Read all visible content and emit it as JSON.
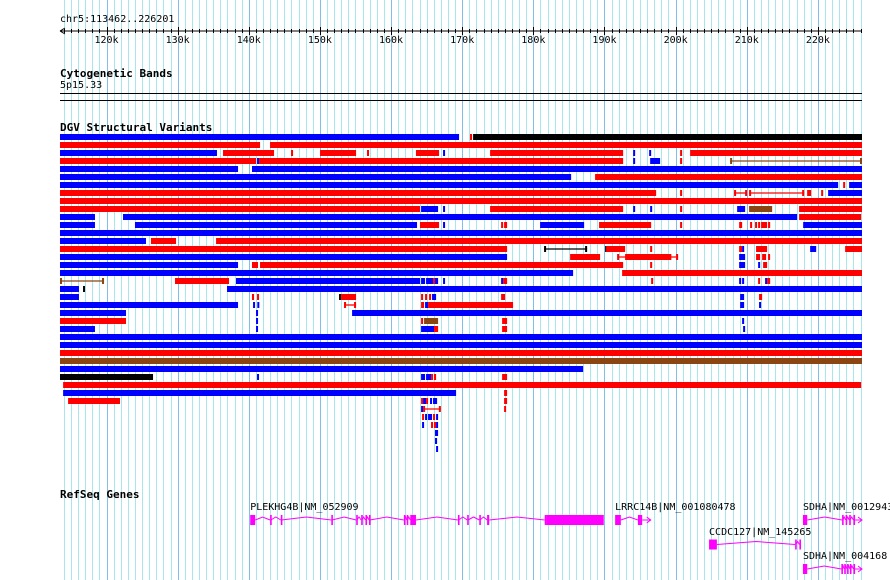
{
  "region": {
    "label": "chr5:113462..226201",
    "start": 113462,
    "end": 226201
  },
  "ruler": {
    "ticks": [
      "120k",
      "130k",
      "140k",
      "150k",
      "160k",
      "170k",
      "180k",
      "190k",
      "200k",
      "210k",
      "220k"
    ],
    "tick_values_kb": [
      120,
      130,
      140,
      150,
      160,
      170,
      180,
      190,
      200,
      210,
      220
    ]
  },
  "tracks": {
    "cyto": {
      "title": "Cytogenetic Bands",
      "band": "5p15.33"
    },
    "dgv": {
      "title": "DGV Structural Variants"
    },
    "refseq": {
      "title": "RefSeq Genes"
    }
  },
  "colors": {
    "b": "#0000ff",
    "r": "#ff0000",
    "k": "#000000",
    "n": "#8b4513",
    "gene": "#ff00ff",
    "grid_minor": "#a8e6ee",
    "grid_major": "#7fbfe8"
  },
  "sv_rows": [
    [
      [
        113.46,
        169.56,
        "b"
      ],
      [
        171.1,
        171.39,
        "r"
      ],
      [
        171.53,
        226.2,
        "k"
      ]
    ],
    [
      [
        113.46,
        141.58,
        "r"
      ],
      [
        142.99,
        226.2,
        "r"
      ]
    ],
    [
      [
        113.46,
        135.53,
        "b"
      ],
      [
        136.38,
        143.55,
        "r"
      ],
      [
        145.94,
        146.22,
        "r"
      ],
      [
        150.02,
        155.08,
        "r"
      ],
      [
        156.62,
        156.9,
        "r"
      ],
      [
        163.5,
        166.75,
        "r"
      ],
      [
        167.31,
        167.59,
        "b"
      ],
      [
        173.92,
        192.62,
        "r"
      ],
      [
        194.03,
        194.31,
        "b"
      ],
      [
        196.28,
        196.56,
        "b"
      ],
      [
        200.63,
        200.92,
        "r"
      ],
      [
        202.04,
        226.2,
        "r"
      ]
    ],
    [
      [
        113.46,
        141.02,
        "r"
      ],
      [
        141.16,
        141.44,
        "b"
      ],
      [
        141.44,
        192.62,
        "r"
      ],
      [
        194.03,
        194.31,
        "b"
      ],
      [
        196.42,
        197.82,
        "b"
      ],
      [
        200.63,
        200.92,
        "r"
      ],
      [
        207.66,
        226.2,
        "nl"
      ]
    ],
    [
      [
        113.46,
        138.49,
        "b"
      ],
      [
        140.45,
        226.2,
        "b"
      ]
    ],
    [
      [
        113.46,
        185.31,
        "b"
      ],
      [
        188.68,
        226.2,
        "r"
      ]
    ],
    [
      [
        113.46,
        222.85,
        "b"
      ],
      [
        223.55,
        223.83,
        "r"
      ],
      [
        224.39,
        226.2,
        "b"
      ]
    ],
    [
      [
        113.46,
        197.26,
        "r"
      ],
      [
        200.63,
        200.92,
        "r"
      ],
      [
        208.22,
        210.05,
        "rl"
      ],
      [
        210.33,
        218.07,
        "rl"
      ],
      [
        218.49,
        219.05,
        "r"
      ],
      [
        220.46,
        220.74,
        "r"
      ],
      [
        221.44,
        226.2,
        "b"
      ]
    ],
    [
      [
        113.46,
        226.2,
        "r"
      ]
    ],
    [
      [
        113.46,
        164.07,
        "r"
      ],
      [
        164.22,
        166.61,
        "b"
      ],
      [
        167.31,
        167.59,
        "b"
      ],
      [
        173.92,
        192.62,
        "r"
      ],
      [
        194.03,
        194.31,
        "b"
      ],
      [
        196.42,
        196.7,
        "b"
      ],
      [
        200.63,
        200.92,
        "r"
      ],
      [
        208.65,
        209.77,
        "b"
      ],
      [
        210.33,
        213.57,
        "n"
      ],
      [
        217.36,
        226.2,
        "r"
      ]
    ],
    [
      [
        113.46,
        118.38,
        "b"
      ],
      [
        122.32,
        217.08,
        "b"
      ],
      [
        217.36,
        226.08,
        "r"
      ]
    ],
    [
      [
        113.46,
        118.38,
        "b"
      ],
      [
        124.0,
        163.65,
        "b"
      ],
      [
        164.07,
        166.75,
        "r"
      ],
      [
        167.31,
        167.59,
        "b"
      ],
      [
        175.47,
        175.75,
        "r"
      ],
      [
        175.89,
        176.31,
        "r"
      ],
      [
        180.95,
        187.14,
        "b"
      ],
      [
        189.24,
        196.56,
        "r"
      ],
      [
        200.63,
        200.92,
        "r"
      ],
      [
        208.93,
        209.35,
        "r"
      ],
      [
        210.47,
        210.75,
        "r"
      ],
      [
        211.17,
        211.45,
        "r"
      ],
      [
        211.6,
        211.88,
        "r"
      ],
      [
        212.02,
        212.86,
        "r"
      ],
      [
        213.0,
        213.29,
        "r"
      ],
      [
        217.93,
        226.2,
        "b"
      ]
    ],
    [
      [
        113.46,
        226.2,
        "b"
      ]
    ],
    [
      [
        113.46,
        125.55,
        "b"
      ],
      [
        126.25,
        129.77,
        "r"
      ],
      [
        135.4,
        226.2,
        "r"
      ]
    ],
    [
      [
        113.46,
        176.31,
        "r"
      ],
      [
        181.51,
        187.56,
        "kl"
      ],
      [
        190.09,
        190.23,
        "k"
      ],
      [
        190.23,
        192.9,
        "r"
      ],
      [
        196.42,
        196.7,
        "r"
      ],
      [
        208.93,
        209.35,
        "r"
      ],
      [
        209.35,
        209.63,
        "b"
      ],
      [
        211.31,
        212.86,
        "r"
      ],
      [
        218.91,
        219.76,
        "b"
      ],
      [
        223.83,
        226.2,
        "r"
      ]
    ],
    [
      [
        113.46,
        176.31,
        "b"
      ],
      [
        185.17,
        189.38,
        "r"
      ],
      [
        191.78,
        200.35,
        "rl"
      ],
      [
        192.9,
        199.4,
        "r"
      ],
      [
        208.93,
        209.77,
        "b"
      ],
      [
        211.31,
        211.88,
        "r"
      ],
      [
        212.16,
        212.72,
        "r"
      ],
      [
        213.0,
        213.14,
        "r"
      ]
    ],
    [
      [
        113.46,
        138.49,
        "b"
      ],
      [
        140.45,
        141.3,
        "r"
      ],
      [
        141.58,
        192.62,
        "r"
      ],
      [
        196.42,
        196.7,
        "r"
      ],
      [
        208.93,
        209.77,
        "b"
      ],
      [
        211.6,
        211.88,
        "b"
      ],
      [
        212.3,
        212.86,
        "r"
      ]
    ],
    [
      [
        113.46,
        185.59,
        "b"
      ],
      [
        192.48,
        226.2,
        "r"
      ]
    ],
    [
      [
        113.46,
        119.65,
        "nl"
      ],
      [
        129.63,
        137.22,
        "r"
      ],
      [
        138.2,
        164.07,
        "b"
      ],
      [
        164.22,
        164.78,
        "b"
      ],
      [
        164.92,
        165.9,
        "b"
      ],
      [
        165.9,
        166.04,
        "r"
      ],
      [
        166.18,
        166.61,
        "b"
      ],
      [
        167.31,
        167.59,
        "b"
      ],
      [
        175.47,
        175.75,
        "b"
      ],
      [
        175.75,
        176.31,
        "r"
      ],
      [
        196.56,
        196.7,
        "r"
      ],
      [
        208.93,
        209.21,
        "b"
      ],
      [
        209.35,
        209.63,
        "b"
      ],
      [
        211.6,
        211.88,
        "r"
      ],
      [
        212.58,
        212.72,
        "b"
      ],
      [
        212.86,
        213.29,
        "r"
      ]
    ],
    [
      [
        113.46,
        116.13,
        "b"
      ],
      [
        116.7,
        116.98,
        "k"
      ],
      [
        136.94,
        226.2,
        "b"
      ]
    ],
    [
      [
        113.46,
        116.13,
        "b"
      ],
      [
        140.45,
        140.74,
        "r"
      ],
      [
        141.16,
        141.44,
        "r"
      ],
      [
        152.69,
        152.97,
        "k"
      ],
      [
        152.97,
        155.08,
        "r"
      ],
      [
        164.22,
        164.5,
        "r"
      ],
      [
        164.78,
        165.06,
        "r"
      ],
      [
        165.34,
        165.62,
        "r"
      ],
      [
        165.76,
        166.33,
        "b"
      ],
      [
        175.47,
        176.03,
        "r"
      ],
      [
        209.07,
        209.63,
        "b"
      ],
      [
        211.73,
        212.16,
        "r"
      ]
    ],
    [
      [
        113.46,
        138.49,
        "b"
      ],
      [
        140.6,
        140.8,
        "b"
      ],
      [
        141.2,
        141.44,
        "b"
      ],
      [
        153.39,
        155.08,
        "rl"
      ],
      [
        164.22,
        164.64,
        "r"
      ],
      [
        164.78,
        165.2,
        "b"
      ],
      [
        165.2,
        177.15,
        "r"
      ],
      [
        209.07,
        209.63,
        "b"
      ],
      [
        211.73,
        212.02,
        "b"
      ]
    ],
    [
      [
        113.46,
        122.74,
        "b"
      ],
      [
        141.02,
        141.3,
        "b"
      ],
      [
        154.52,
        226.2,
        "b"
      ]
    ],
    [
      [
        113.46,
        122.74,
        "r"
      ],
      [
        141.02,
        141.3,
        "b"
      ],
      [
        164.22,
        164.5,
        "r"
      ],
      [
        164.64,
        166.61,
        "n"
      ],
      [
        175.61,
        176.31,
        "r"
      ],
      [
        209.35,
        209.63,
        "b"
      ]
    ],
    [
      [
        113.46,
        118.38,
        "b"
      ],
      [
        141.02,
        141.3,
        "b"
      ],
      [
        164.22,
        166.04,
        "b"
      ],
      [
        166.04,
        166.61,
        "r"
      ],
      [
        175.61,
        176.31,
        "r"
      ],
      [
        209.49,
        209.77,
        "b"
      ]
    ],
    [
      [
        113.46,
        226.2,
        "b"
      ]
    ],
    [
      [
        113.46,
        226.2,
        "b"
      ]
    ],
    [
      [
        113.46,
        226.2,
        "r"
      ]
    ],
    [
      [
        113.46,
        226.2,
        "n"
      ]
    ],
    [
      [
        113.46,
        187.0,
        "b"
      ]
    ],
    [
      [
        113.46,
        126.54,
        "k"
      ],
      [
        141.16,
        141.44,
        "b"
      ],
      [
        164.22,
        164.78,
        "b"
      ],
      [
        164.92,
        165.62,
        "b"
      ],
      [
        165.62,
        165.9,
        "r"
      ],
      [
        166.04,
        166.33,
        "r"
      ],
      [
        175.61,
        176.31,
        "r"
      ]
    ],
    [
      [
        113.9,
        226.08,
        "r"
      ]
    ],
    [
      [
        113.9,
        169.14,
        "b"
      ],
      [
        175.89,
        176.31,
        "r"
      ]
    ],
    [
      [
        114.6,
        121.9,
        "r"
      ],
      [
        164.22,
        164.5,
        "r"
      ],
      [
        164.5,
        164.92,
        "b"
      ],
      [
        164.92,
        165.2,
        "r"
      ],
      [
        165.48,
        165.76,
        "b"
      ],
      [
        165.9,
        166.47,
        "b"
      ],
      [
        175.89,
        176.31,
        "r"
      ]
    ],
    [
      [
        164.22,
        164.5,
        "b"
      ],
      [
        164.5,
        167.0,
        "rl"
      ],
      [
        175.89,
        176.17,
        "r"
      ]
    ],
    [
      [
        164.36,
        164.64,
        "r"
      ],
      [
        164.78,
        164.92,
        "b"
      ],
      [
        165.2,
        165.76,
        "b"
      ],
      [
        165.9,
        166.18,
        "r"
      ],
      [
        166.33,
        166.61,
        "b"
      ]
    ],
    [
      [
        164.36,
        164.64,
        "b"
      ],
      [
        165.62,
        165.9,
        "r"
      ],
      [
        166.04,
        166.33,
        "r"
      ],
      [
        166.33,
        166.61,
        "b"
      ]
    ],
    [
      [
        166.18,
        166.61,
        "b"
      ]
    ],
    [
      [
        166.18,
        166.47,
        "b"
      ]
    ],
    [
      [
        166.33,
        166.61,
        "b"
      ]
    ]
  ],
  "genes": [
    {
      "label": "PLEKHG4B|NM_052909",
      "row": 0,
      "start": 140.2,
      "end": 189.9,
      "arrow": false,
      "exons": [
        [
          140.2,
          140.9
        ],
        [
          143.0,
          143.1
        ],
        [
          144.5,
          144.6
        ],
        [
          151.6,
          151.7
        ],
        [
          155.1,
          155.2
        ],
        [
          155.8,
          155.9
        ],
        [
          156.4,
          156.5
        ],
        [
          156.9,
          157.0
        ],
        [
          161.8,
          161.9
        ],
        [
          162.2,
          162.3
        ],
        [
          162.7,
          163.5
        ],
        [
          169.4,
          169.5
        ],
        [
          170.7,
          170.8
        ],
        [
          172.4,
          172.5
        ],
        [
          173.5,
          173.8
        ],
        [
          181.6,
          181.7
        ],
        [
          181.8,
          189.9
        ]
      ]
    },
    {
      "label": "LRRC14B|NM_001080478",
      "row": 0,
      "start": 191.5,
      "end": 196.5,
      "arrow": true,
      "exons": [
        [
          191.5,
          192.3
        ],
        [
          194.7,
          195.3
        ]
      ]
    },
    {
      "label": "SDHA|NM_0012943",
      "row": 0,
      "start": 217.9,
      "end": 226.2,
      "arrow": true,
      "exons": [
        [
          217.9,
          218.5
        ],
        [
          223.4,
          223.5
        ],
        [
          223.9,
          224.0
        ],
        [
          224.4,
          224.5
        ],
        [
          225.0,
          225.1
        ]
      ]
    },
    {
      "label": "CCDC127|NM_145265",
      "row": 1,
      "start": 204.7,
      "end": 217.6,
      "arrow": false,
      "exons": [
        [
          204.7,
          205.8
        ],
        [
          216.8,
          216.9
        ],
        [
          217.4,
          217.5
        ]
      ]
    },
    {
      "label": "SDHA|NM_004168",
      "row": 2,
      "start": 217.9,
      "end": 226.2,
      "arrow": true,
      "exons": [
        [
          217.9,
          218.5
        ],
        [
          223.3,
          223.4
        ],
        [
          223.7,
          223.8
        ],
        [
          224.1,
          224.2
        ],
        [
          224.5,
          224.6
        ],
        [
          225.0,
          225.1
        ]
      ]
    }
  ]
}
